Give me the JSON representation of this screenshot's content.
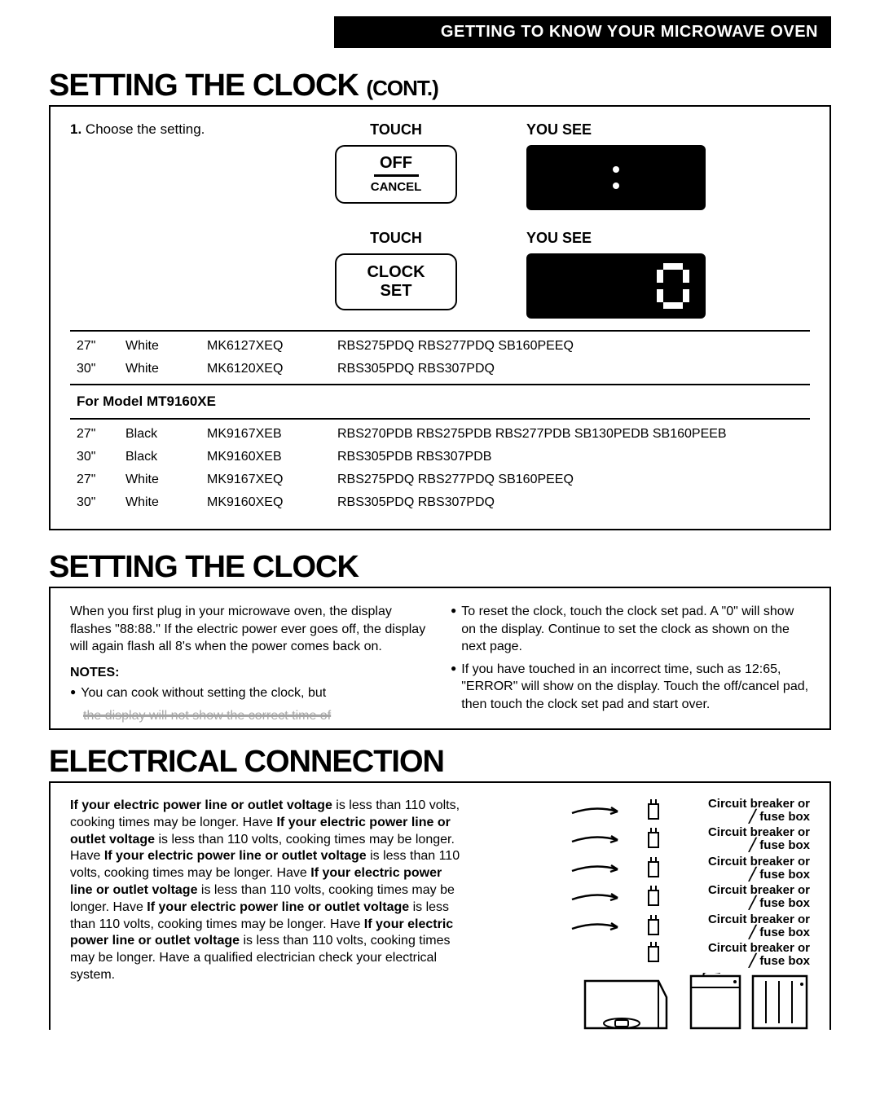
{
  "header": {
    "title": "GETTING TO KNOW YOUR MICROWAVE OVEN"
  },
  "section1": {
    "title_main": "Setting the Clock",
    "title_suffix": "(cont.)",
    "step_prefix": "1.",
    "step_text": "Choose the setting.",
    "touch_label": "TOUCH",
    "yousee_label": "YOU SEE",
    "button_off": {
      "big": "OFF",
      "sub": "CANCEL"
    },
    "button_clock": {
      "line1": "CLOCK",
      "line2": "SET"
    },
    "display_zero": "0",
    "table_top": [
      {
        "size": "27\"",
        "color": "White",
        "kit": "MK6127XEQ",
        "ovens": "RBS275PDQ RBS277PDQ SB160PEEQ"
      },
      {
        "size": "30\"",
        "color": "White",
        "kit": "MK6120XEQ",
        "ovens": "RBS305PDQ RBS307PDQ"
      }
    ],
    "model_sub": "For Model MT9160XE",
    "table_bottom": [
      {
        "size": "27\"",
        "color": "Black",
        "kit": "MK9167XEB",
        "ovens": "RBS270PDB RBS275PDB RBS277PDB SB130PEDB SB160PEEB"
      },
      {
        "size": "30\"",
        "color": "Black",
        "kit": "MK9160XEB",
        "ovens": "RBS305PDB RBS307PDB"
      },
      {
        "size": "27\"",
        "color": "White",
        "kit": "MK9167XEQ",
        "ovens": "RBS275PDQ RBS277PDQ SB160PEEQ"
      },
      {
        "size": "30\"",
        "color": "White",
        "kit": "MK9160XEQ",
        "ovens": "RBS305PDQ RBS307PDQ"
      }
    ]
  },
  "section2": {
    "title": "Setting the clock",
    "left_para": "When you first plug in your microwave oven, the display flashes \"88:88.\" If the electric power ever goes off, the display will again flash all 8's when the power comes back on.",
    "notes_head": "NOTES:",
    "left_bullet": "You can cook without setting the clock, but",
    "left_cutoff": "the display will not show the correct time of",
    "right_b1": "To reset the clock, touch the clock set pad. A \"0\" will show on the display. Continue to set the clock as shown on the next page.",
    "right_b2": "If you have touched in an incorrect time, such as 12:65, \"ERROR\" will show on the display. Touch the off/cancel pad, then touch the clock set pad and start over."
  },
  "section3": {
    "title": "Electrical Connection",
    "lead": "If your electric power line or outlet voltage",
    "tail": " is less than 110 volts, cooking times may be longer. Have",
    "last_tail": " is less than 110 volts, cooking times may be longer. Have a qualified electrician check your electrical system.",
    "repeat_count": 5,
    "breaker_text_l1": "Circuit breaker or",
    "breaker_text_l2": "fuse box",
    "breaker_rows": 5,
    "last_breaker_l1": "Circuit breaker or",
    "last_breaker_l2": "fuse box"
  },
  "colors": {
    "black": "#000000",
    "white": "#ffffff"
  }
}
